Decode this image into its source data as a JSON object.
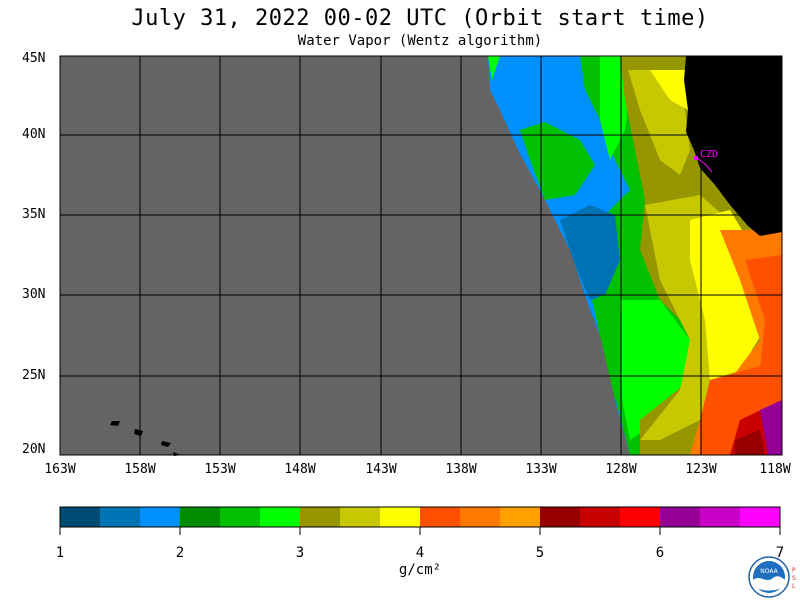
{
  "title": "July 31, 2022  00-02 UTC  (Orbit start time)",
  "subtitle": "Water Vapor (Wentz algorithm)",
  "map": {
    "latitude_labels": [
      "45N",
      "40N",
      "35N",
      "30N",
      "25N",
      "20N"
    ],
    "longitude_labels": [
      "163W",
      "158W",
      "153W",
      "148W",
      "143W",
      "138W",
      "133W",
      "128W",
      "123W",
      "118W"
    ],
    "station_label": "CZD",
    "no_data_color": "#646464",
    "land_color": "#000000",
    "station_color": "#ff00ff"
  },
  "colorbar": {
    "colors": [
      "#004b73",
      "#0073b4",
      "#0091ff",
      "#008c00",
      "#00c000",
      "#00ff00",
      "#969600",
      "#c8c800",
      "#ffff00",
      "#ff5000",
      "#ff7800",
      "#ffa000",
      "#960000",
      "#c80000",
      "#ff0000",
      "#960096",
      "#c800c8",
      "#ff00ff"
    ],
    "tick_labels": [
      "1",
      "2",
      "3",
      "4",
      "5",
      "6",
      "7"
    ],
    "unit": "g/cm²"
  },
  "logo": {
    "name": "noaa-logo",
    "text": "NOAA",
    "side_text": "PSL"
  }
}
